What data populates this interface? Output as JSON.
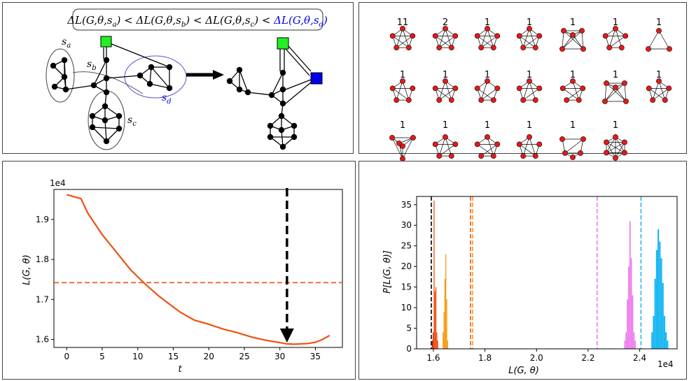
{
  "diagram": {
    "formula_parts": [
      "ΔL(G,θ,s",
      "a",
      ") < ΔL(G,θ,s",
      "b",
      ") < ΔL(G,θ,s",
      "c",
      ") < ",
      "ΔL(G,θ,s",
      "d",
      ")"
    ],
    "set_labels": {
      "a": "s",
      "a_sub": "a",
      "b": "s",
      "b_sub": "b",
      "c": "s",
      "c_sub": "c",
      "d": "s",
      "d_sub": "d"
    },
    "colors": {
      "green": "#22ee22",
      "blue": "#0000ee",
      "ellipse_blue": "#5555cc",
      "red_node": "#e81818"
    }
  },
  "motifs": {
    "labels": [
      "11",
      "2",
      "1",
      "1",
      "1",
      "1",
      "1",
      "1",
      "1",
      "1",
      "1",
      "1",
      "1",
      "1",
      "1",
      "1",
      "1",
      "1",
      "1",
      "1"
    ]
  },
  "chart_data": [
    {
      "type": "line",
      "title": "",
      "xlabel": "t",
      "ylabel": "L(G, θ)",
      "exponent_label": "1e4",
      "xlim": [
        -1.8,
        38.8
      ],
      "ylim": [
        1.58,
        1.975
      ],
      "xticks": [
        0,
        5,
        10,
        15,
        20,
        25,
        30,
        35
      ],
      "yticks": [
        1.6,
        1.7,
        1.8,
        1.9
      ],
      "ytick_labels": [
        "1.6",
        "1.7",
        "1.8",
        "1.9"
      ],
      "series": [
        {
          "color": "#f05010",
          "x": [
            0,
            2,
            3,
            5,
            7,
            9,
            11,
            13,
            15,
            16,
            18,
            20,
            22,
            24,
            26,
            28,
            30,
            31,
            32,
            34,
            35,
            36,
            37
          ],
          "y": [
            1.962,
            1.952,
            1.915,
            1.862,
            1.818,
            1.774,
            1.739,
            1.708,
            1.681,
            1.668,
            1.648,
            1.638,
            1.626,
            1.617,
            1.606,
            1.598,
            1.592,
            1.589,
            1.588,
            1.59,
            1.593,
            1.6,
            1.61
          ]
        }
      ],
      "hline": {
        "y": 1.742,
        "color": "#f05010",
        "style": "dashed"
      },
      "arrow": {
        "x": 31,
        "y_from": 1.975,
        "y_to": 1.589
      }
    },
    {
      "type": "histogram",
      "title": "",
      "xlabel": "L(G, θ)",
      "ylabel": "P[L(G, θ)]",
      "exponent_label": "1e4",
      "xlim": [
        1.535,
        2.545
      ],
      "ylim": [
        0,
        37
      ],
      "xticks": [
        1.6,
        1.8,
        2.0,
        2.2,
        2.4
      ],
      "xtick_labels": [
        "1.6",
        "1.8",
        "2.0",
        "2.2",
        "2.4"
      ],
      "yticks": [
        0,
        5,
        10,
        15,
        20,
        25,
        30,
        35
      ],
      "vlines": [
        {
          "x": 1.592,
          "color": "#000000"
        },
        {
          "x": 1.744,
          "color": "#f05010"
        },
        {
          "x": 1.752,
          "color": "#f59a10"
        },
        {
          "x": 2.235,
          "color": "#e87de8"
        },
        {
          "x": 2.405,
          "color": "#22b8f0"
        }
      ],
      "series": [
        {
          "name": "",
          "color": "#c03008",
          "bins": [
            [
              1.594,
              1.5975,
              2
            ],
            [
              1.5975,
              1.601,
              4
            ]
          ]
        },
        {
          "name": "",
          "color": "#f05010",
          "bins": [
            [
              1.601,
              1.6045,
              36
            ],
            [
              1.6045,
              1.608,
              14
            ],
            [
              1.608,
              1.6115,
              15
            ],
            [
              1.6115,
              1.615,
              4
            ],
            [
              1.615,
              1.6185,
              2
            ]
          ]
        },
        {
          "name": "",
          "color": "#f59a10",
          "bins": [
            [
              1.636,
              1.6395,
              4
            ],
            [
              1.6395,
              1.643,
              9
            ],
            [
              1.643,
              1.6465,
              17
            ],
            [
              1.6465,
              1.65,
              23
            ],
            [
              1.65,
              1.6535,
              12
            ],
            [
              1.6535,
              1.657,
              2
            ]
          ]
        },
        {
          "name": "",
          "color": "#ee82ee",
          "bins": [
            [
              2.34,
              2.345,
              2
            ],
            [
              2.345,
              2.35,
              4
            ],
            [
              2.35,
              2.355,
              12
            ],
            [
              2.355,
              2.36,
              20
            ],
            [
              2.36,
              2.365,
              31
            ],
            [
              2.365,
              2.37,
              22
            ],
            [
              2.37,
              2.375,
              13
            ],
            [
              2.375,
              2.38,
              4
            ],
            [
              2.38,
              2.385,
              2
            ]
          ]
        },
        {
          "name": "",
          "color": "#1ab8f2",
          "bins": [
            [
              2.445,
              2.451,
              4
            ],
            [
              2.451,
              2.457,
              8
            ],
            [
              2.457,
              2.463,
              17
            ],
            [
              2.463,
              2.469,
              24
            ],
            [
              2.469,
              2.475,
              29
            ],
            [
              2.475,
              2.481,
              26
            ],
            [
              2.481,
              2.487,
              22
            ],
            [
              2.487,
              2.493,
              16
            ],
            [
              2.493,
              2.499,
              8
            ],
            [
              2.499,
              2.505,
              4
            ],
            [
              2.505,
              2.511,
              2
            ]
          ]
        }
      ]
    }
  ]
}
